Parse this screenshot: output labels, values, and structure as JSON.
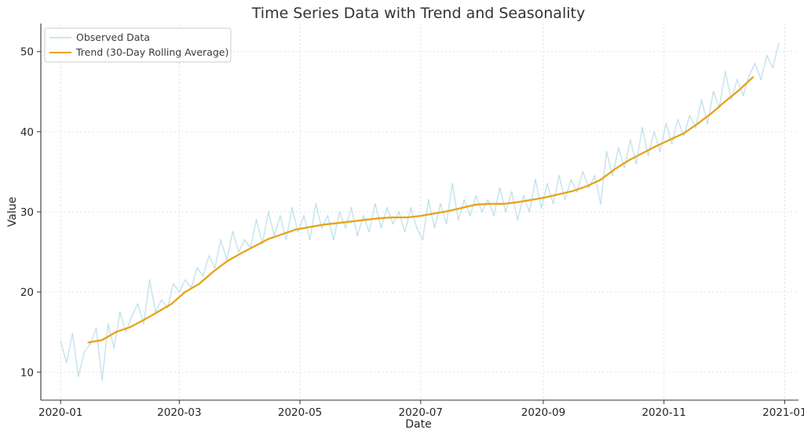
{
  "chart_data": {
    "type": "line",
    "title": "Time Series Data with Trend and Seasonality",
    "xlabel": "Date",
    "ylabel": "Value",
    "x_range": [
      "2019-12-22",
      "2021-01-08"
    ],
    "ylim": [
      6.5,
      53.5
    ],
    "x_ticks": [
      "2020-01",
      "2020-03",
      "2020-05",
      "2020-07",
      "2020-09",
      "2020-11",
      "2021-01"
    ],
    "y_ticks": [
      10,
      20,
      30,
      40,
      50
    ],
    "grid": true,
    "legend_position": "top-left",
    "series": [
      {
        "name": "Observed Data",
        "color": "#add8e6",
        "points": [
          [
            "2020-01-01",
            13.8
          ],
          [
            "2020-01-04",
            11.2
          ],
          [
            "2020-01-07",
            14.8
          ],
          [
            "2020-01-10",
            9.5
          ],
          [
            "2020-01-13",
            12.5
          ],
          [
            "2020-01-16",
            13.5
          ],
          [
            "2020-01-19",
            15.5
          ],
          [
            "2020-01-22",
            9.0
          ],
          [
            "2020-01-25",
            16.0
          ],
          [
            "2020-01-28",
            13.0
          ],
          [
            "2020-01-31",
            17.5
          ],
          [
            "2020-02-03",
            15.0
          ],
          [
            "2020-02-06",
            17.0
          ],
          [
            "2020-02-09",
            18.5
          ],
          [
            "2020-02-12",
            16.0
          ],
          [
            "2020-02-15",
            21.5
          ],
          [
            "2020-02-18",
            17.5
          ],
          [
            "2020-02-21",
            19.0
          ],
          [
            "2020-02-24",
            18.0
          ],
          [
            "2020-02-27",
            21.0
          ],
          [
            "2020-03-01",
            20.0
          ],
          [
            "2020-03-04",
            21.5
          ],
          [
            "2020-03-07",
            20.5
          ],
          [
            "2020-03-10",
            23.0
          ],
          [
            "2020-03-13",
            22.0
          ],
          [
            "2020-03-16",
            24.5
          ],
          [
            "2020-03-19",
            23.0
          ],
          [
            "2020-03-22",
            26.5
          ],
          [
            "2020-03-25",
            24.0
          ],
          [
            "2020-03-28",
            27.5
          ],
          [
            "2020-03-31",
            25.0
          ],
          [
            "2020-04-03",
            26.5
          ],
          [
            "2020-04-06",
            25.5
          ],
          [
            "2020-04-09",
            29.0
          ],
          [
            "2020-04-12",
            26.0
          ],
          [
            "2020-04-15",
            30.0
          ],
          [
            "2020-04-18",
            27.0
          ],
          [
            "2020-04-21",
            29.5
          ],
          [
            "2020-04-24",
            26.5
          ],
          [
            "2020-04-27",
            30.5
          ],
          [
            "2020-04-30",
            27.5
          ],
          [
            "2020-05-03",
            29.5
          ],
          [
            "2020-05-06",
            26.5
          ],
          [
            "2020-05-09",
            31.0
          ],
          [
            "2020-05-12",
            28.0
          ],
          [
            "2020-05-15",
            29.5
          ],
          [
            "2020-05-18",
            26.5
          ],
          [
            "2020-05-21",
            30.0
          ],
          [
            "2020-05-24",
            28.0
          ],
          [
            "2020-05-27",
            30.5
          ],
          [
            "2020-05-30",
            27.0
          ],
          [
            "2020-06-02",
            29.5
          ],
          [
            "2020-06-05",
            27.5
          ],
          [
            "2020-06-08",
            31.0
          ],
          [
            "2020-06-11",
            28.0
          ],
          [
            "2020-06-14",
            30.5
          ],
          [
            "2020-06-17",
            28.5
          ],
          [
            "2020-06-20",
            30.0
          ],
          [
            "2020-06-23",
            27.5
          ],
          [
            "2020-06-26",
            30.5
          ],
          [
            "2020-06-29",
            28.0
          ],
          [
            "2020-07-02",
            26.5
          ],
          [
            "2020-07-05",
            31.5
          ],
          [
            "2020-07-08",
            28.0
          ],
          [
            "2020-07-11",
            31.0
          ],
          [
            "2020-07-14",
            28.5
          ],
          [
            "2020-07-17",
            33.5
          ],
          [
            "2020-07-20",
            29.0
          ],
          [
            "2020-07-23",
            31.5
          ],
          [
            "2020-07-26",
            29.5
          ],
          [
            "2020-07-29",
            32.0
          ],
          [
            "2020-08-01",
            30.0
          ],
          [
            "2020-08-04",
            31.5
          ],
          [
            "2020-08-07",
            29.5
          ],
          [
            "2020-08-10",
            33.0
          ],
          [
            "2020-08-13",
            30.0
          ],
          [
            "2020-08-16",
            32.5
          ],
          [
            "2020-08-19",
            29.0
          ],
          [
            "2020-08-22",
            32.0
          ],
          [
            "2020-08-25",
            30.0
          ],
          [
            "2020-08-28",
            34.0
          ],
          [
            "2020-08-31",
            30.5
          ],
          [
            "2020-09-03",
            33.5
          ],
          [
            "2020-09-06",
            31.0
          ],
          [
            "2020-09-09",
            34.5
          ],
          [
            "2020-09-12",
            31.5
          ],
          [
            "2020-09-15",
            34.0
          ],
          [
            "2020-09-18",
            32.5
          ],
          [
            "2020-09-21",
            35.0
          ],
          [
            "2020-09-24",
            33.0
          ],
          [
            "2020-09-27",
            34.5
          ],
          [
            "2020-09-30",
            31.0
          ],
          [
            "2020-10-03",
            37.5
          ],
          [
            "2020-10-06",
            34.5
          ],
          [
            "2020-10-09",
            38.0
          ],
          [
            "2020-10-12",
            35.5
          ],
          [
            "2020-10-15",
            39.0
          ],
          [
            "2020-10-18",
            36.0
          ],
          [
            "2020-10-21",
            40.5
          ],
          [
            "2020-10-24",
            37.0
          ],
          [
            "2020-10-27",
            40.0
          ],
          [
            "2020-10-30",
            37.5
          ],
          [
            "2020-11-02",
            41.0
          ],
          [
            "2020-11-05",
            38.5
          ],
          [
            "2020-11-08",
            41.5
          ],
          [
            "2020-11-11",
            39.5
          ],
          [
            "2020-11-14",
            42.0
          ],
          [
            "2020-11-17",
            40.5
          ],
          [
            "2020-11-20",
            44.0
          ],
          [
            "2020-11-23",
            41.0
          ],
          [
            "2020-11-26",
            45.0
          ],
          [
            "2020-11-29",
            43.0
          ],
          [
            "2020-12-02",
            47.5
          ],
          [
            "2020-12-05",
            44.0
          ],
          [
            "2020-12-08",
            46.5
          ],
          [
            "2020-12-11",
            44.5
          ],
          [
            "2020-12-14",
            47.0
          ],
          [
            "2020-12-17",
            48.5
          ],
          [
            "2020-12-20",
            46.5
          ],
          [
            "2020-12-23",
            49.5
          ],
          [
            "2020-12-26",
            48.0
          ],
          [
            "2020-12-29",
            51.0
          ]
        ]
      },
      {
        "name": "Trend (30-Day Rolling Average)",
        "color": "#e8a317",
        "points": [
          [
            "2020-01-15",
            13.7
          ],
          [
            "2020-01-22",
            14.0
          ],
          [
            "2020-01-29",
            15.0
          ],
          [
            "2020-02-05",
            15.6
          ],
          [
            "2020-02-12",
            16.5
          ],
          [
            "2020-02-19",
            17.5
          ],
          [
            "2020-02-26",
            18.5
          ],
          [
            "2020-03-04",
            20.0
          ],
          [
            "2020-03-11",
            21.0
          ],
          [
            "2020-03-18",
            22.5
          ],
          [
            "2020-03-25",
            23.8
          ],
          [
            "2020-04-01",
            24.8
          ],
          [
            "2020-04-08",
            25.7
          ],
          [
            "2020-04-15",
            26.6
          ],
          [
            "2020-04-22",
            27.2
          ],
          [
            "2020-04-29",
            27.8
          ],
          [
            "2020-05-06",
            28.1
          ],
          [
            "2020-05-13",
            28.4
          ],
          [
            "2020-05-20",
            28.6
          ],
          [
            "2020-05-27",
            28.8
          ],
          [
            "2020-06-03",
            29.0
          ],
          [
            "2020-06-10",
            29.2
          ],
          [
            "2020-06-17",
            29.3
          ],
          [
            "2020-06-24",
            29.3
          ],
          [
            "2020-07-01",
            29.5
          ],
          [
            "2020-07-08",
            29.8
          ],
          [
            "2020-07-15",
            30.1
          ],
          [
            "2020-07-22",
            30.5
          ],
          [
            "2020-07-29",
            30.9
          ],
          [
            "2020-08-05",
            31.0
          ],
          [
            "2020-08-12",
            31.0
          ],
          [
            "2020-08-19",
            31.2
          ],
          [
            "2020-08-26",
            31.5
          ],
          [
            "2020-09-02",
            31.8
          ],
          [
            "2020-09-09",
            32.2
          ],
          [
            "2020-09-16",
            32.6
          ],
          [
            "2020-09-23",
            33.2
          ],
          [
            "2020-09-30",
            34.0
          ],
          [
            "2020-10-07",
            35.3
          ],
          [
            "2020-10-14",
            36.4
          ],
          [
            "2020-10-21",
            37.3
          ],
          [
            "2020-10-28",
            38.2
          ],
          [
            "2020-11-04",
            39.0
          ],
          [
            "2020-11-11",
            39.8
          ],
          [
            "2020-11-18",
            41.0
          ],
          [
            "2020-11-25",
            42.3
          ],
          [
            "2020-12-02",
            43.8
          ],
          [
            "2020-12-09",
            45.2
          ],
          [
            "2020-12-16",
            46.8
          ]
        ]
      }
    ]
  }
}
